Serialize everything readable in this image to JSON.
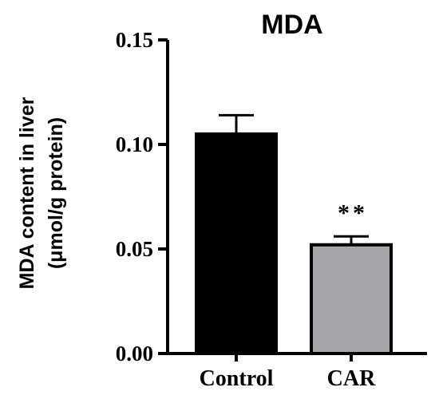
{
  "chart_data": {
    "type": "bar",
    "title": "MDA",
    "ylabel_lines": [
      "MDA content in liver",
      "(μmol/g protein)"
    ],
    "xlabel": "",
    "categories": [
      "Control",
      "CAR"
    ],
    "values": [
      0.105,
      0.052
    ],
    "errors": [
      0.009,
      0.004
    ],
    "bar_colors": [
      "#000000",
      "#a6a6a8"
    ],
    "significance": [
      "",
      "**"
    ],
    "ylim": [
      0,
      0.15
    ],
    "yticks": [
      0.0,
      0.05,
      0.1,
      0.15
    ],
    "ytick_labels": [
      "0.00",
      "0.05",
      "0.10",
      "0.15"
    ],
    "grid": false,
    "legend": "none"
  }
}
